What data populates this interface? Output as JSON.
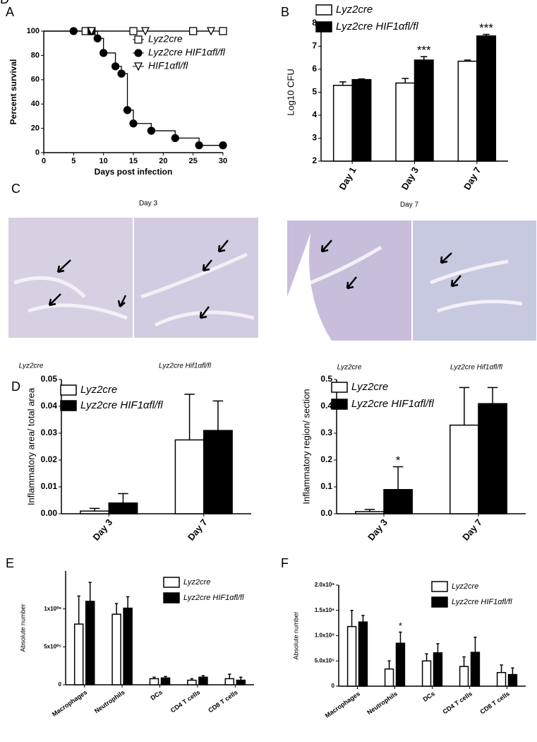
{
  "chart_data": [
    {
      "type": "survival",
      "panel": "A",
      "x_label": "Days post infection",
      "y_label": "Percent survival",
      "xlim": [
        0,
        30
      ],
      "xticks": [
        0,
        5,
        10,
        15,
        20,
        25,
        30
      ],
      "ylim": [
        0,
        100
      ],
      "yticks": [
        0,
        20,
        40,
        60,
        80,
        100
      ],
      "series": [
        {
          "name": "Lyz2cre",
          "marker": "square",
          "color": "#ffffff",
          "x": [
            7,
            8,
            15,
            25,
            30
          ],
          "values": [
            100,
            100,
            100,
            100,
            100
          ]
        },
        {
          "name": "Lyz2cre HIF1αfl/fl",
          "marker": "circle",
          "color": "#000000",
          "x": [
            5,
            8,
            9,
            10,
            12,
            13,
            14,
            15,
            18,
            22,
            26,
            30
          ],
          "values": [
            100,
            100,
            94,
            82,
            71,
            65,
            35,
            24,
            18,
            12,
            6,
            6
          ]
        },
        {
          "name": "HIF1αfl/fl",
          "marker": "triangle",
          "color": "#ffffff",
          "x": [
            8,
            17,
            28
          ],
          "values": [
            100,
            100,
            100
          ]
        }
      ]
    },
    {
      "type": "bar",
      "panel": "B",
      "y_label": "Log10 CFU",
      "categories": [
        "Day 1",
        "Day 3",
        "Day 7"
      ],
      "ylim": [
        2,
        8
      ],
      "yticks": [
        2,
        3,
        4,
        5,
        6,
        7,
        8
      ],
      "series": [
        {
          "name": "Lyz2cre",
          "color": "#ffffff",
          "values": [
            5.3,
            5.4,
            6.35
          ],
          "errors": [
            0.15,
            0.2,
            0.05
          ],
          "annotations": [
            null,
            null,
            null
          ]
        },
        {
          "name": "Lyz2cre HIF1αfl/fl",
          "color": "#000000",
          "values": [
            5.55,
            6.4,
            7.45
          ],
          "errors": [
            0.03,
            0.15,
            0.07
          ],
          "annotations": [
            null,
            "***",
            "***"
          ]
        }
      ]
    },
    {
      "type": "bar",
      "panel": "D",
      "y_label": "Inflammatory area/ total area",
      "categories": [
        "Day 3",
        "Day 7"
      ],
      "ylim": [
        0,
        0.05
      ],
      "yticks": [
        {
          "value": 0,
          "label": "0.00"
        },
        0.01,
        0.02,
        0.03,
        0.04,
        0.05
      ],
      "series": [
        {
          "name": "Lyz2cre",
          "color": "#ffffff",
          "values": [
            0.001,
            0.0275
          ],
          "errors": [
            0.001,
            0.017
          ],
          "annotations": [
            null,
            null
          ]
        },
        {
          "name": "Lyz2cre HIF1αfl/fl",
          "color": "#000000",
          "values": [
            0.004,
            0.031
          ],
          "errors": [
            0.0035,
            0.011
          ],
          "annotations": [
            null,
            null
          ]
        }
      ]
    },
    {
      "type": "bar",
      "y_label": "Inflammatory region/ section",
      "categories": [
        "Day 3",
        "Day 7"
      ],
      "ylim": [
        0,
        0.5
      ],
      "yticks": [
        {
          "value": 0,
          "label": "0.0"
        },
        0.1,
        0.2,
        0.3,
        0.4,
        0.5
      ],
      "series": [
        {
          "name": "Lyz2cre",
          "color": "#ffffff",
          "values": [
            0.008,
            0.33
          ],
          "errors": [
            0.008,
            0.14
          ],
          "annotations": [
            null,
            null
          ]
        },
        {
          "name": "Lyz2cre HIF1αfl/fl",
          "color": "#000000",
          "values": [
            0.09,
            0.41
          ],
          "errors": [
            0.085,
            0.06
          ],
          "annotations": [
            "*",
            null
          ]
        }
      ]
    },
    {
      "type": "bar",
      "panel": "E",
      "y_label": "Absolute number",
      "categories": [
        "Macrophages",
        "Neutrophils",
        "DCs",
        "CD4 T cells",
        "CD8 T cells"
      ],
      "ylim": [
        0,
        1500000
      ],
      "yticks": [
        0,
        {
          "value": 500000,
          "label": "5x10⁰⁵"
        },
        {
          "value": 1000000,
          "label": "1x10⁰⁶"
        }
      ],
      "series": [
        {
          "name": "Lyz2cre",
          "color": "#ffffff",
          "values": [
            800000,
            930000,
            80000,
            60000,
            80000
          ],
          "errors": [
            370000,
            140000,
            20000,
            20000,
            60000
          ],
          "annotations": [
            null,
            null,
            null,
            null,
            null
          ]
        },
        {
          "name": "Lyz2cre HIF1αfl/fl",
          "color": "#000000",
          "values": [
            1100000,
            1010000,
            90000,
            100000,
            60000
          ],
          "errors": [
            250000,
            150000,
            20000,
            20000,
            40000
          ],
          "annotations": [
            null,
            null,
            null,
            null,
            null
          ]
        }
      ]
    },
    {
      "type": "bar",
      "panel": "F",
      "y_label": "Absolute number",
      "categories": [
        "Macrophages",
        "Neutrophils",
        "DCs",
        "CD4 T cells",
        "CD8 T cells"
      ],
      "ylim": [
        0,
        2000000
      ],
      "yticks": [
        0,
        {
          "value": 500000,
          "label": "5.0x10⁵"
        },
        {
          "value": 1000000,
          "label": "1.0x10⁶"
        },
        {
          "value": 1500000,
          "label": "1.5x10⁶"
        },
        {
          "value": 2000000,
          "label": "2.0x10⁶"
        }
      ],
      "series": [
        {
          "name": "Lyz2cre",
          "color": "#ffffff",
          "values": [
            1180000,
            340000,
            500000,
            390000,
            270000
          ],
          "errors": [
            320000,
            160000,
            140000,
            190000,
            150000
          ],
          "annotations": [
            null,
            null,
            null,
            null,
            null
          ]
        },
        {
          "name": "Lyz2cre HIF1αfl/fl",
          "color": "#000000",
          "values": [
            1270000,
            850000,
            660000,
            670000,
            230000
          ],
          "errors": [
            130000,
            220000,
            180000,
            300000,
            130000
          ],
          "annotations": [
            null,
            "*",
            null,
            null,
            null
          ]
        }
      ]
    }
  ],
  "panel_c": {
    "panel": "C",
    "day3": "Day 3",
    "day7": "Day 7",
    "captions": [
      "Lyz2cre",
      "Lyz2cre Hif1αfl/fl",
      "Lyz2cre",
      "Lyz2cre Hif1αfl/fl"
    ]
  }
}
